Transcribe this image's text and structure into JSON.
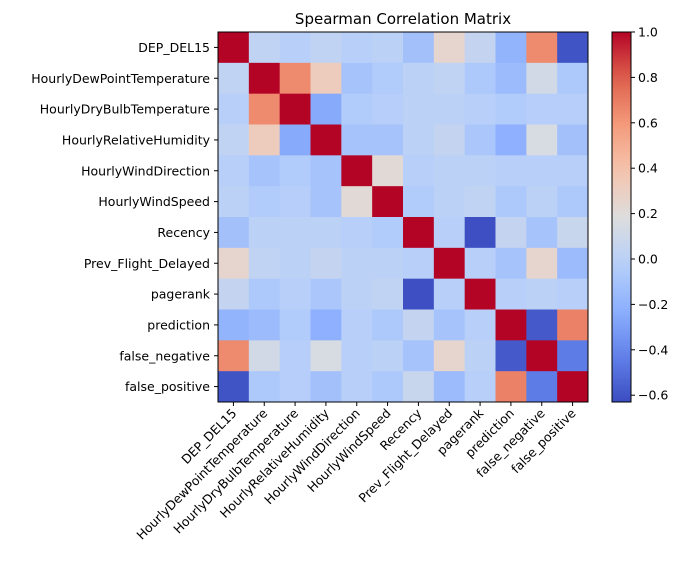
{
  "chart_data": {
    "type": "heatmap",
    "title": "Spearman Correlation Matrix",
    "labels": [
      "DEP_DEL15",
      "HourlyDewPointTemperature",
      "HourlyDryBulbTemperature",
      "HourlyRelativeHumidity",
      "HourlyWindDirection",
      "HourlyWindSpeed",
      "Recency",
      "Prev_Flight_Delayed",
      "pagerank",
      "prediction",
      "false_negative",
      "false_positive"
    ],
    "values": [
      [
        1.0,
        0.03,
        -0.02,
        0.03,
        -0.02,
        0.0,
        -0.12,
        0.25,
        0.05,
        -0.2,
        0.65,
        -0.6
      ],
      [
        0.03,
        1.0,
        0.65,
        0.32,
        -0.1,
        -0.05,
        0.0,
        0.03,
        -0.07,
        -0.15,
        0.12,
        -0.07
      ],
      [
        -0.02,
        0.65,
        1.0,
        -0.25,
        -0.05,
        -0.03,
        0.0,
        0.0,
        -0.02,
        -0.05,
        -0.03,
        -0.03
      ],
      [
        0.03,
        0.32,
        -0.25,
        1.0,
        -0.1,
        -0.1,
        0.0,
        0.05,
        -0.08,
        -0.22,
        0.15,
        -0.12
      ],
      [
        -0.02,
        -0.1,
        -0.05,
        -0.1,
        1.0,
        0.22,
        -0.02,
        0.0,
        0.0,
        -0.02,
        -0.02,
        -0.02
      ],
      [
        0.0,
        -0.05,
        -0.03,
        -0.1,
        0.22,
        1.0,
        -0.05,
        0.0,
        0.03,
        -0.07,
        0.0,
        -0.07
      ],
      [
        -0.12,
        0.0,
        0.0,
        0.0,
        -0.02,
        -0.05,
        1.0,
        -0.02,
        -0.62,
        0.05,
        -0.1,
        0.07
      ],
      [
        0.25,
        0.03,
        0.0,
        0.05,
        0.0,
        0.0,
        -0.02,
        1.0,
        -0.02,
        -0.1,
        0.25,
        -0.15
      ],
      [
        0.05,
        -0.07,
        -0.02,
        -0.08,
        0.0,
        0.03,
        -0.62,
        -0.02,
        1.0,
        -0.02,
        0.0,
        -0.02
      ],
      [
        -0.2,
        -0.15,
        -0.05,
        -0.22,
        -0.02,
        -0.07,
        0.05,
        -0.1,
        -0.02,
        1.0,
        -0.58,
        0.68
      ],
      [
        0.65,
        0.12,
        -0.03,
        0.15,
        -0.02,
        0.0,
        -0.1,
        0.25,
        0.0,
        -0.58,
        1.0,
        -0.45
      ],
      [
        -0.6,
        -0.07,
        -0.03,
        -0.12,
        -0.02,
        -0.07,
        0.07,
        -0.15,
        -0.02,
        0.68,
        -0.45,
        1.0
      ]
    ],
    "colormap": "coolwarm",
    "vmin": -0.63,
    "vmax": 1.0,
    "colorbar_ticks": [
      "1.0",
      "0.8",
      "0.6",
      "0.4",
      "0.2",
      "0.0",
      "−0.2",
      "−0.4",
      "−0.6"
    ],
    "colorbar_tick_values": [
      1.0,
      0.8,
      0.6,
      0.4,
      0.2,
      0.0,
      -0.2,
      -0.4,
      -0.6
    ],
    "grid": false,
    "legend": "colorbar-right"
  }
}
